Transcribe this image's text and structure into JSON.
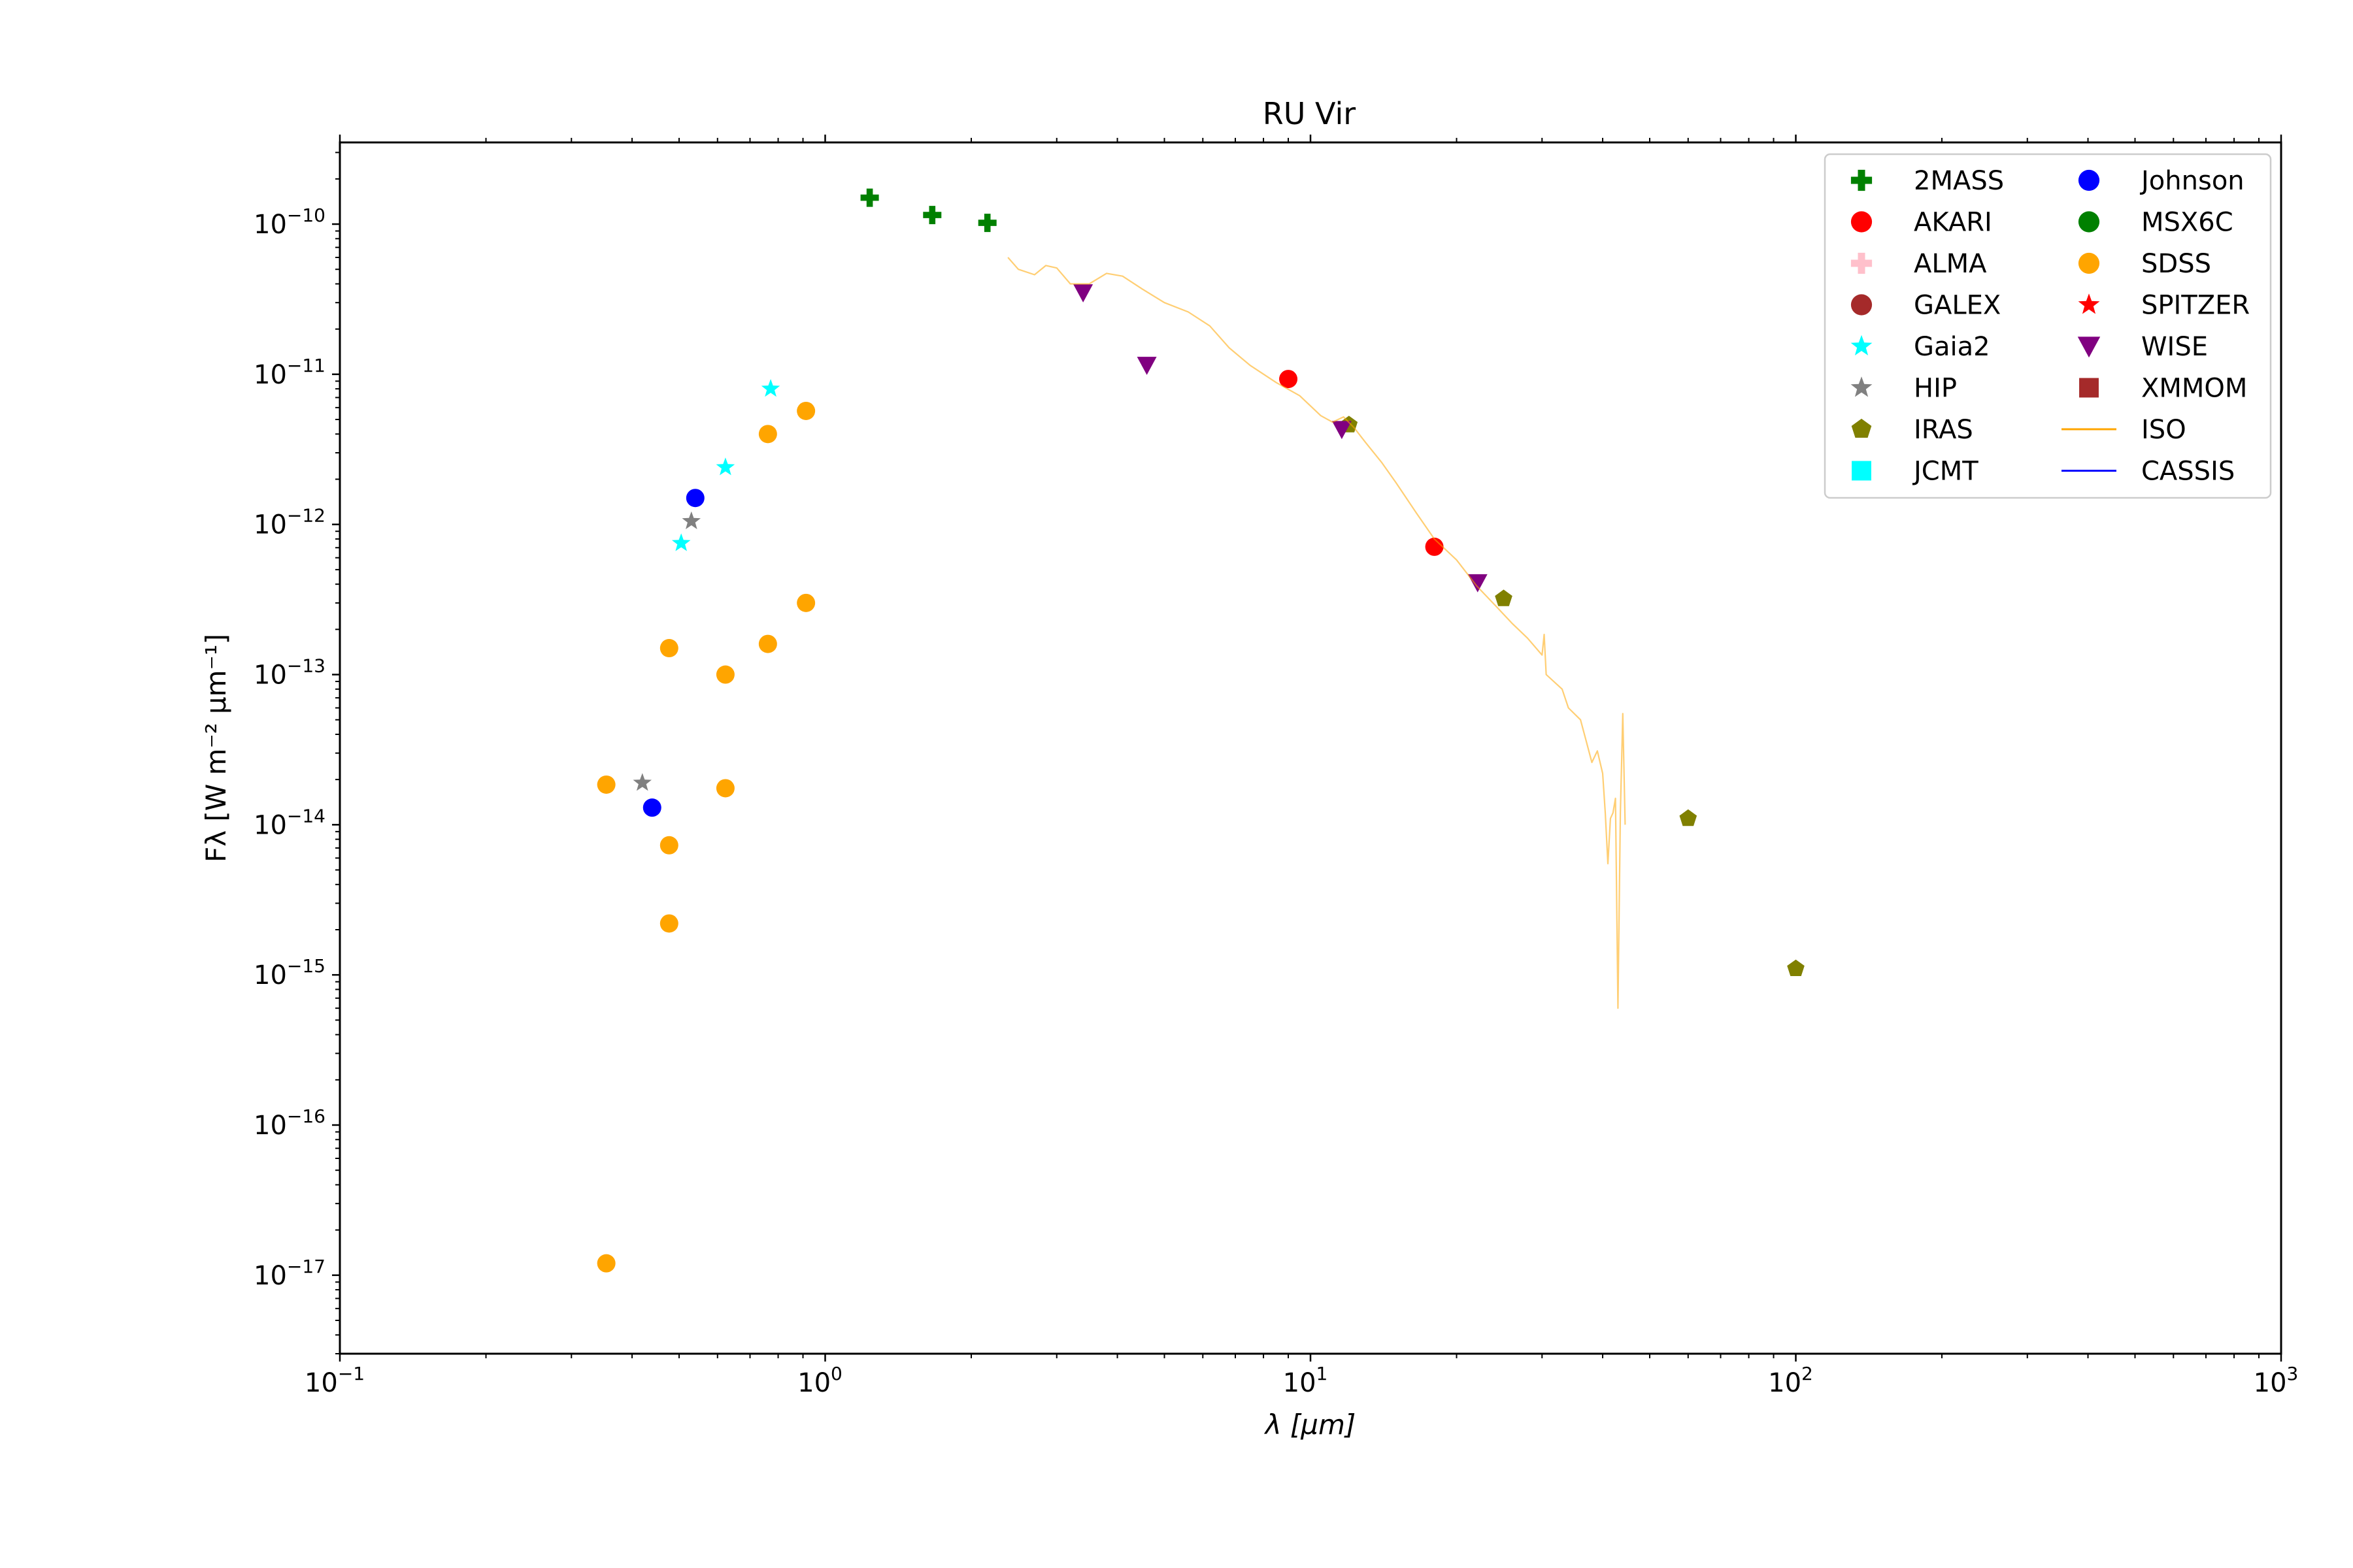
{
  "chart_data": {
    "type": "scatter",
    "title": "RU Vir",
    "xlabel": "λ [μm]",
    "ylabel": "Fλ [W m⁻² μm⁻¹]",
    "x_scale": "log",
    "y_scale": "log",
    "xlim": [
      0.1,
      1000
    ],
    "ylim": [
      3e-18,
      3.5e-10
    ],
    "x_ticks": [
      {
        "value": 0.1,
        "base": "10",
        "exp": "−1"
      },
      {
        "value": 1,
        "base": "10",
        "exp": "0"
      },
      {
        "value": 10,
        "base": "10",
        "exp": "1"
      },
      {
        "value": 100,
        "base": "10",
        "exp": "2"
      },
      {
        "value": 1000,
        "base": "10",
        "exp": "3"
      }
    ],
    "y_ticks": [
      {
        "value": 1e-17,
        "base": "10",
        "exp": "−17"
      },
      {
        "value": 1e-16,
        "base": "10",
        "exp": "−16"
      },
      {
        "value": 1e-15,
        "base": "10",
        "exp": "−15"
      },
      {
        "value": 1e-14,
        "base": "10",
        "exp": "−14"
      },
      {
        "value": 1e-13,
        "base": "10",
        "exp": "−13"
      },
      {
        "value": 1e-12,
        "base": "10",
        "exp": "−12"
      },
      {
        "value": 1e-11,
        "base": "10",
        "exp": "−11"
      },
      {
        "value": 1e-10,
        "base": "10",
        "exp": "−10"
      }
    ],
    "grid": false,
    "legend_position": "top-right",
    "series": [
      {
        "name": "2MASS",
        "marker": "plus",
        "color": "#008000",
        "points": [
          [
            1.235,
            1.5e-10
          ],
          [
            1.662,
            1.15e-10
          ],
          [
            2.159,
            1.02e-10
          ]
        ]
      },
      {
        "name": "AKARI",
        "marker": "circle",
        "color": "#ff0000",
        "points": [
          [
            9.0,
            9.3e-12
          ],
          [
            18.0,
            7.1e-13
          ]
        ]
      },
      {
        "name": "ALMA",
        "marker": "plus",
        "color": "#ffc0cb",
        "points": []
      },
      {
        "name": "GALEX",
        "marker": "circle",
        "color": "#a52a2a",
        "points": []
      },
      {
        "name": "Gaia2",
        "marker": "star",
        "color": "#00ffff",
        "points": [
          [
            0.505,
            7.5e-13
          ],
          [
            0.623,
            2.4e-12
          ],
          [
            0.772,
            8e-12
          ]
        ]
      },
      {
        "name": "HIP",
        "marker": "star",
        "color": "#808080",
        "points": [
          [
            0.42,
            1.9e-14
          ],
          [
            0.53,
            1.05e-12
          ]
        ]
      },
      {
        "name": "IRAS",
        "marker": "pentagon",
        "color": "#808000",
        "points": [
          [
            12,
            4.6e-12
          ],
          [
            25,
            3.2e-13
          ],
          [
            60,
            1.1e-14
          ],
          [
            100,
            1.1e-15
          ]
        ]
      },
      {
        "name": "JCMT",
        "marker": "square",
        "color": "#00ffff",
        "points": []
      },
      {
        "name": "Johnson",
        "marker": "circle",
        "color": "#0000ff",
        "points": [
          [
            0.44,
            1.3e-14
          ],
          [
            0.54,
            1.5e-12
          ]
        ]
      },
      {
        "name": "MSX6C",
        "marker": "circle",
        "color": "#008000",
        "points": []
      },
      {
        "name": "SDSS",
        "marker": "circle",
        "color": "#ffa500",
        "points": [
          [
            0.354,
            1.85e-14
          ],
          [
            0.354,
            1.2e-17
          ],
          [
            0.477,
            1.5e-13
          ],
          [
            0.477,
            7.3e-15
          ],
          [
            0.477,
            2.2e-15
          ],
          [
            0.623,
            1e-13
          ],
          [
            0.623,
            1.75e-14
          ],
          [
            0.762,
            4e-12
          ],
          [
            0.762,
            1.6e-13
          ],
          [
            0.913,
            5.7e-12
          ],
          [
            0.913,
            3e-13
          ]
        ]
      },
      {
        "name": "SPITZER",
        "marker": "star",
        "color": "#ff0000",
        "points": []
      },
      {
        "name": "WISE",
        "marker": "triangle-down",
        "color": "#800080",
        "points": [
          [
            3.4,
            3.5e-11
          ],
          [
            4.6,
            1.15e-11
          ],
          [
            11.6,
            4.3e-12
          ],
          [
            22.1,
            4.1e-13
          ]
        ]
      },
      {
        "name": "XMMOM",
        "marker": "square",
        "color": "#a52a2a",
        "points": []
      },
      {
        "name": "ISO",
        "marker": "line",
        "color": "#ffa500",
        "points": [
          [
            2.38,
            6e-11
          ],
          [
            2.5,
            5e-11
          ],
          [
            2.7,
            4.6e-11
          ],
          [
            2.85,
            5.3e-11
          ],
          [
            3.0,
            5.1e-11
          ],
          [
            3.2,
            4e-11
          ],
          [
            3.5,
            4e-11
          ],
          [
            3.8,
            4.7e-11
          ],
          [
            4.1,
            4.5e-11
          ],
          [
            4.5,
            3.7e-11
          ],
          [
            5.0,
            3e-11
          ],
          [
            5.6,
            2.6e-11
          ],
          [
            6.2,
            2.1e-11
          ],
          [
            6.8,
            1.5e-11
          ],
          [
            7.5,
            1.15e-11
          ],
          [
            8.5,
            8.8e-12
          ],
          [
            9.5,
            7.2e-12
          ],
          [
            10.5,
            5.3e-12
          ],
          [
            11.1,
            4.8e-12
          ],
          [
            11.7,
            5.2e-12
          ],
          [
            12.3,
            4.4e-12
          ],
          [
            13.0,
            3.5e-12
          ],
          [
            14.0,
            2.6e-12
          ],
          [
            15.0,
            1.9e-12
          ],
          [
            16.5,
            1.2e-12
          ],
          [
            18.0,
            8e-13
          ],
          [
            20.0,
            5.8e-13
          ],
          [
            22.0,
            3.9e-13
          ],
          [
            24.0,
            2.9e-13
          ],
          [
            26.0,
            2.2e-13
          ],
          [
            28.0,
            1.75e-13
          ],
          [
            30.0,
            1.35e-13
          ],
          [
            30.3,
            1.85e-13
          ],
          [
            30.6,
            1e-13
          ],
          [
            33.0,
            8e-14
          ],
          [
            34.0,
            6e-14
          ],
          [
            36.0,
            5e-14
          ],
          [
            37.0,
            3.6e-14
          ],
          [
            38.0,
            2.6e-14
          ],
          [
            39.0,
            3.1e-14
          ],
          [
            40.0,
            2.2e-14
          ],
          [
            40.5,
            1.2e-14
          ],
          [
            41.0,
            5.5e-15
          ],
          [
            41.5,
            1.1e-14
          ],
          [
            42.0,
            1.2e-14
          ],
          [
            42.5,
            1.5e-14
          ],
          [
            43.0,
            6e-16
          ],
          [
            43.5,
            1.2e-14
          ],
          [
            44.0,
            5.5e-14
          ],
          [
            44.5,
            1e-14
          ]
        ]
      },
      {
        "name": "CASSIS",
        "marker": "line",
        "color": "#0000ff",
        "points": []
      }
    ]
  }
}
